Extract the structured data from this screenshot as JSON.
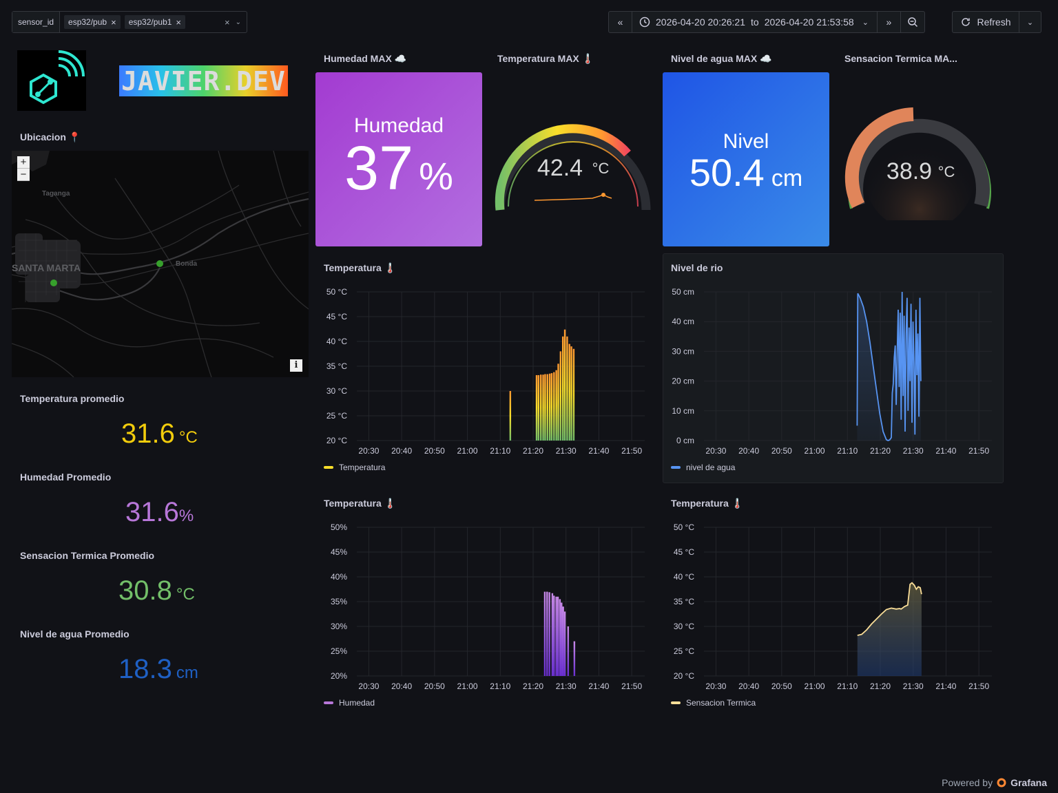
{
  "toolbar": {
    "variable_label": "sensor_id",
    "chips": [
      "esp32/pub",
      "esp32/pub1"
    ],
    "time_from": "2026-04-20 20:26:21",
    "time_to_word": "to",
    "time_to": "2026-04-20 21:53:58",
    "refresh_label": "Refresh"
  },
  "branding": {
    "banner_text": "JAVIER.DEV"
  },
  "map": {
    "title": "Ubicacion 📍",
    "place1": "Taganga",
    "place2": "SANTA MARTA",
    "place3": "Bonda",
    "zoom_in": "+",
    "zoom_out": "−",
    "info": "i"
  },
  "stats": [
    {
      "label": "Temperatura promedio",
      "value": "31.6",
      "unit": "°C",
      "color": "#f2cc0c"
    },
    {
      "label": "Humedad Promedio",
      "value": "31.6",
      "unit": "%",
      "color": "#b877d9"
    },
    {
      "label": "Sensacion Termica Promedio",
      "value": "30.8",
      "unit": "°C",
      "color": "#73bf69"
    },
    {
      "label": "Nivel de agua Promedio",
      "value": "18.3",
      "unit": "cm",
      "color": "#1f60c4"
    }
  ],
  "top_panels": {
    "humedad": {
      "title": "Humedad MAX ☁️",
      "label": "Humedad",
      "value": "37",
      "unit": "%",
      "color": "#a352cc"
    },
    "temp_gauge": {
      "title": "Temperatura MAX 🌡️",
      "value": "42.4",
      "unit": "°C",
      "level": 0.75
    },
    "nivel": {
      "title": "Nivel de agua MAX ☁️",
      "label": "Nivel",
      "value": "50.4",
      "unit": "cm",
      "color": "#1f60c4"
    },
    "sensacion": {
      "title": "Sensacion Termica MA...",
      "value": "38.9",
      "unit": "°C",
      "level": 0.3
    }
  },
  "chart_data": [
    {
      "id": "c1",
      "type": "bar",
      "title": "Temperatura 🌡️",
      "ylim": [
        20,
        50
      ],
      "yticks": [
        "50 °C",
        "45 °C",
        "40 °C",
        "35 °C",
        "30 °C",
        "25 °C",
        "20 °C"
      ],
      "xticks": [
        "20:30",
        "20:40",
        "20:50",
        "21:00",
        "21:10",
        "21:20",
        "21:30",
        "21:40",
        "21:50"
      ],
      "series": [
        {
          "name": "Temperatura",
          "color": "#fade2a",
          "x_minutes": [
            46.7,
            54.7,
            55.3,
            56.0,
            56.7,
            57.3,
            58.0,
            58.7,
            59.3,
            60.0,
            60.7,
            61.3,
            62.0,
            62.7,
            63.3,
            64.0,
            64.7,
            65.3,
            66.0
          ],
          "values": [
            30,
            33.2,
            33.2,
            33.3,
            33.3,
            33.4,
            33.4,
            33.5,
            33.6,
            33.8,
            34.2,
            35.5,
            38,
            41,
            42.4,
            41,
            39.5,
            39,
            38.5
          ]
        }
      ]
    },
    {
      "id": "c2",
      "type": "line",
      "title": "Nivel de rio",
      "ylim": [
        0,
        50
      ],
      "yticks": [
        "50 cm",
        "40 cm",
        "30 cm",
        "20 cm",
        "10 cm",
        "0 cm"
      ],
      "xticks": [
        "20:30",
        "20:40",
        "20:50",
        "21:00",
        "21:10",
        "21:20",
        "21:30",
        "21:40",
        "21:50"
      ],
      "series": [
        {
          "name": "nivel de agua",
          "color": "#5794f2",
          "x_minutes": [
            46.6,
            46.8,
            47.5,
            48.5,
            49.5,
            50.5,
            51.5,
            52.5,
            53.5,
            54.5,
            55.5,
            56.0,
            56.5,
            57.0,
            57.3,
            57.6,
            57.9,
            58.2,
            58.5,
            58.8,
            59.1,
            59.4,
            59.7,
            60.0,
            60.3,
            60.6,
            60.9,
            61.2,
            61.5,
            61.8,
            62.1,
            62.4,
            62.7,
            63.0,
            63.3,
            63.6,
            63.9,
            64.2,
            64.5,
            64.8,
            65.1,
            65.4,
            65.7,
            66.0
          ],
          "values": [
            5,
            49.5,
            48,
            45,
            40,
            33,
            25,
            17,
            9,
            3,
            0.3,
            0,
            0.2,
            1,
            16,
            19,
            28,
            32,
            12,
            30,
            44,
            18,
            43,
            7,
            50,
            15,
            42,
            3,
            36,
            48,
            10,
            38,
            20,
            46,
            6,
            40,
            26,
            2,
            44,
            22,
            36,
            8,
            48,
            20
          ]
        }
      ]
    },
    {
      "id": "c3",
      "type": "bar",
      "title": "Temperatura 🌡️",
      "ylim": [
        20,
        50
      ],
      "yticks": [
        "50%",
        "45%",
        "40%",
        "35%",
        "30%",
        "25%",
        "20%"
      ],
      "xticks": [
        "20:30",
        "20:40",
        "20:50",
        "21:00",
        "21:10",
        "21:20",
        "21:30",
        "21:40",
        "21:50"
      ],
      "series": [
        {
          "name": "Humedad",
          "color": "#b877d9",
          "x_minutes": [
            57.2,
            57.9,
            58.6,
            59.5,
            60.0,
            60.7,
            61.2,
            61.8,
            62.3,
            62.8,
            63.3,
            64.3,
            66.2
          ],
          "values": [
            37,
            37,
            36.9,
            36.7,
            36.2,
            36,
            36,
            35.5,
            34.8,
            34,
            33,
            30,
            27
          ]
        }
      ]
    },
    {
      "id": "c4",
      "type": "area",
      "title": "Temperatura 🌡️",
      "ylim": [
        20,
        50
      ],
      "yticks": [
        "50 °C",
        "45 °C",
        "40 °C",
        "35 °C",
        "30 °C",
        "25 °C",
        "20 °C"
      ],
      "xticks": [
        "20:30",
        "20:40",
        "20:50",
        "21:00",
        "21:10",
        "21:20",
        "21:30",
        "21:40",
        "21:50"
      ],
      "series": [
        {
          "name": "Sensacion Termica",
          "color": "#fade98",
          "x_minutes": [
            46.7,
            48.0,
            49.5,
            51.0,
            52.5,
            54.0,
            55.5,
            57.0,
            58.5,
            59.5,
            60.0,
            61.0,
            62.0,
            62.7,
            63.3,
            64.0,
            64.6,
            65.2,
            65.8,
            66.2
          ],
          "values": [
            28.2,
            28.4,
            29.3,
            30.5,
            31.5,
            32.5,
            33.4,
            33.7,
            33.5,
            33.6,
            33.5,
            34,
            34.3,
            38.5,
            38.8,
            38.3,
            37.5,
            38.0,
            37.8,
            36.5
          ]
        }
      ]
    }
  ],
  "footer": {
    "powered": "Powered by",
    "brand": "Grafana"
  }
}
